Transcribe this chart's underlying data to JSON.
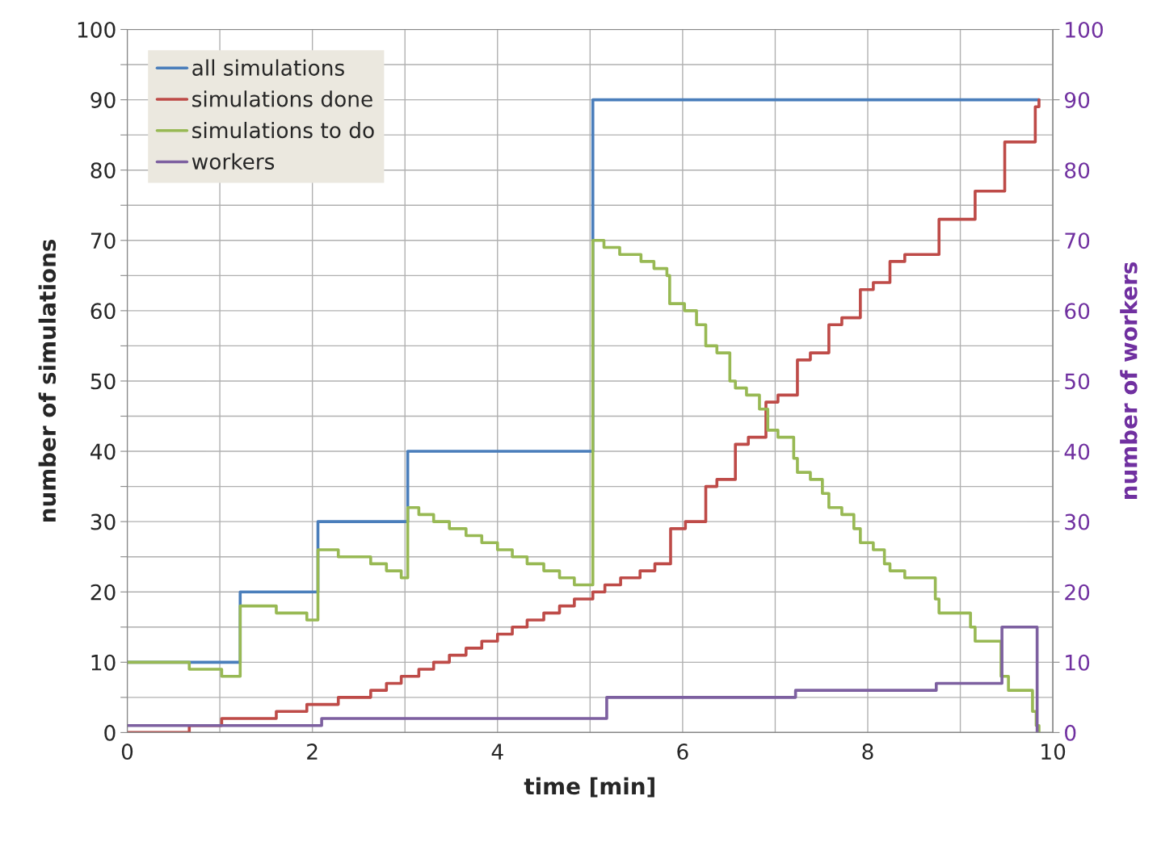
{
  "chart_data": {
    "type": "step",
    "xlabel": "time [min]",
    "ylabel": "number of simulations",
    "y2label": "number of workers",
    "xlim": [
      0,
      10
    ],
    "xticks": [
      0,
      {
        "value": 1,
        "label": null
      },
      2,
      {
        "value": 3,
        "label": null
      },
      4,
      {
        "value": 5,
        "label": null
      },
      6,
      {
        "value": 7,
        "label": null
      },
      8,
      {
        "value": 9,
        "label": null
      },
      10
    ],
    "ylim": [
      0,
      100
    ],
    "yticks": [
      0,
      {
        "value": 5,
        "label": null
      },
      10,
      {
        "value": 15,
        "label": null
      },
      20,
      {
        "value": 25,
        "label": null
      },
      30,
      {
        "value": 35,
        "label": null
      },
      40,
      {
        "value": 45,
        "label": null
      },
      50,
      {
        "value": 55,
        "label": null
      },
      60,
      {
        "value": 65,
        "label": null
      },
      70,
      {
        "value": 75,
        "label": null
      },
      80,
      {
        "value": 85,
        "label": null
      },
      90,
      {
        "value": 95,
        "label": null
      },
      100
    ],
    "y2lim": [
      0,
      100
    ],
    "y2ticks": [
      0,
      10,
      20,
      30,
      40,
      50,
      60,
      70,
      80,
      90,
      100
    ],
    "grid": true,
    "legend": "top left",
    "marker": "none",
    "line_style": "solid",
    "series": [
      {
        "name": "all simulations",
        "color": "#4a7ebb",
        "x": [
          0,
          1.22,
          2.06,
          3.03,
          5.03,
          9.85
        ],
        "values": [
          10,
          20,
          30,
          40,
          90,
          90
        ]
      },
      {
        "name": "simulations done",
        "color": "#be4b48",
        "x": [
          0,
          0.67,
          1.02,
          1.61,
          1.94,
          2.28,
          2.63,
          2.8,
          2.96,
          3.15,
          3.31,
          3.48,
          3.66,
          3.83,
          4.0,
          4.16,
          4.32,
          4.5,
          4.67,
          4.83,
          5.03,
          5.16,
          5.33,
          5.54,
          5.7,
          5.87,
          6.03,
          6.25,
          6.37,
          6.57,
          6.71,
          6.9,
          7.03,
          7.24,
          7.38,
          7.58,
          7.72,
          7.92,
          8.06,
          8.24,
          8.4,
          8.77,
          9.16,
          9.48,
          9.81,
          9.85
        ],
        "values": [
          0,
          1,
          2,
          3,
          4,
          5,
          6,
          7,
          8,
          9,
          10,
          11,
          12,
          13,
          14,
          15,
          16,
          17,
          18,
          19,
          20,
          21,
          22,
          23,
          24,
          29,
          30,
          35,
          36,
          41,
          42,
          47,
          48,
          53,
          54,
          58,
          59,
          63,
          64,
          67,
          68,
          73,
          77,
          84,
          89,
          90
        ]
      },
      {
        "name": "simulations to do",
        "color": "#98b954",
        "x": [
          0,
          0.67,
          1.02,
          1.22,
          1.61,
          1.94,
          2.06,
          2.28,
          2.63,
          2.8,
          2.96,
          3.03,
          3.15,
          3.31,
          3.48,
          3.66,
          3.83,
          4.0,
          4.16,
          4.32,
          4.5,
          4.67,
          4.83,
          5.03,
          5.15,
          5.32,
          5.55,
          5.69,
          5.83,
          5.86,
          6.02,
          6.15,
          6.25,
          6.37,
          6.51,
          6.57,
          6.69,
          6.83,
          6.92,
          7.03,
          7.2,
          7.24,
          7.38,
          7.51,
          7.58,
          7.72,
          7.85,
          7.92,
          8.06,
          8.18,
          8.24,
          8.4,
          8.73,
          8.77,
          9.11,
          9.16,
          9.44,
          9.52,
          9.78,
          9.82,
          9.85
        ],
        "values": [
          10,
          9,
          8,
          18,
          17,
          16,
          26,
          25,
          24,
          23,
          22,
          32,
          31,
          30,
          29,
          28,
          27,
          26,
          25,
          24,
          23,
          22,
          21,
          70,
          69,
          68,
          67,
          66,
          65,
          61,
          60,
          58,
          55,
          54,
          50,
          49,
          48,
          46,
          43,
          42,
          39,
          37,
          36,
          34,
          32,
          31,
          29,
          27,
          26,
          24,
          23,
          22,
          19,
          17,
          15,
          13,
          8,
          6,
          3,
          1,
          0
        ]
      },
      {
        "name": "workers",
        "color": "#7d60a0",
        "axis": "y2",
        "x": [
          0,
          2.1,
          5.18,
          7.22,
          8.74,
          9.45,
          9.83,
          9.83
        ],
        "values": [
          1,
          2,
          5,
          6,
          7,
          15,
          15,
          0
        ]
      }
    ]
  }
}
